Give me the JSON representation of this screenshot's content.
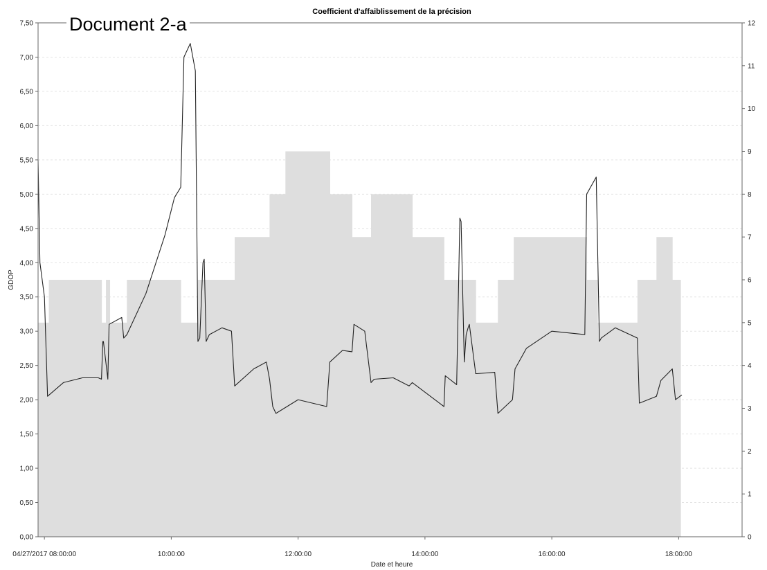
{
  "document_label": "Document 2-a",
  "chart_data": {
    "type": "line",
    "title": "Coefficient d'affaiblissement de la précision",
    "xlabel": "Date et heure",
    "ylabel": "GDOP",
    "y2label": "",
    "xlim": [
      7.9,
      19.0
    ],
    "ylim": [
      0,
      7.5
    ],
    "y2lim": [
      0,
      12
    ],
    "x_ticks": [
      {
        "value": 8,
        "label": "04/27/2017 08:00:00"
      },
      {
        "value": 10,
        "label": "10:00:00"
      },
      {
        "value": 12,
        "label": "12:00:00"
      },
      {
        "value": 14,
        "label": "14:00:00"
      },
      {
        "value": 16,
        "label": "16:00:00"
      },
      {
        "value": 18,
        "label": "18:00:00"
      }
    ],
    "y_ticks": [
      "0,00",
      "0,50",
      "1,00",
      "1,50",
      "2,00",
      "2,50",
      "3,00",
      "3,50",
      "4,00",
      "4,50",
      "5,00",
      "5,50",
      "6,00",
      "6,50",
      "7,00",
      "7,50"
    ],
    "y2_ticks": [
      "0",
      "1",
      "2",
      "3",
      "4",
      "5",
      "6",
      "7",
      "8",
      "9",
      "10",
      "11",
      "12"
    ],
    "grid": true,
    "series": [
      {
        "axis": "right",
        "kind": "step-area",
        "x": [
          7.9,
          8.07,
          8.9,
          8.97,
          9.03,
          9.3,
          10.15,
          10.42,
          11.0,
          11.55,
          11.8,
          12.5,
          12.85,
          13.15,
          13.8,
          14.3,
          14.8,
          15.15,
          15.4,
          16.55,
          16.72,
          17.35,
          17.65,
          17.9,
          18.03
        ],
        "y": [
          5,
          6,
          5,
          6,
          5,
          6,
          5,
          6,
          7,
          8,
          9,
          8,
          7,
          8,
          7,
          6,
          5,
          6,
          7,
          6,
          5,
          6,
          7,
          6,
          7
        ],
        "color": "#dedede"
      },
      {
        "axis": "left",
        "kind": "line",
        "x": [
          7.9,
          7.93,
          8.0,
          8.05,
          8.3,
          8.6,
          8.85,
          8.9,
          8.92,
          8.93,
          9.0,
          9.02,
          9.22,
          9.25,
          9.3,
          9.6,
          9.9,
          10.05,
          10.15,
          10.2,
          10.3,
          10.38,
          10.42,
          10.45,
          10.5,
          10.52,
          10.55,
          10.6,
          10.8,
          10.95,
          11.0,
          11.3,
          11.5,
          11.55,
          11.6,
          11.65,
          12.0,
          12.45,
          12.5,
          12.7,
          12.85,
          12.88,
          13.05,
          13.15,
          13.2,
          13.5,
          13.75,
          13.8,
          14.3,
          14.32,
          14.5,
          14.55,
          14.57,
          14.62,
          14.65,
          14.68,
          14.7,
          14.8,
          14.82,
          15.1,
          15.15,
          15.38,
          15.42,
          15.6,
          16.0,
          16.52,
          16.55,
          16.7,
          16.75,
          16.78,
          17.0,
          17.35,
          17.38,
          17.65,
          17.72,
          17.9,
          17.95,
          18.05
        ],
        "y": [
          5.5,
          4.0,
          3.5,
          2.05,
          2.25,
          2.32,
          2.32,
          2.3,
          2.85,
          2.85,
          2.3,
          3.1,
          3.2,
          2.9,
          2.95,
          3.55,
          4.4,
          4.95,
          5.1,
          7.0,
          7.2,
          6.8,
          2.85,
          2.9,
          4.0,
          4.05,
          2.85,
          2.95,
          3.05,
          3.0,
          2.2,
          2.45,
          2.55,
          2.3,
          1.9,
          1.8,
          2.0,
          1.9,
          2.55,
          2.72,
          2.7,
          3.1,
          3.0,
          2.25,
          2.3,
          2.32,
          2.2,
          2.25,
          1.9,
          2.35,
          2.22,
          4.65,
          4.6,
          2.55,
          2.95,
          3.05,
          3.1,
          2.38,
          2.38,
          2.4,
          1.8,
          2.0,
          2.45,
          2.75,
          3.0,
          2.95,
          5.0,
          5.25,
          2.85,
          2.9,
          3.05,
          2.9,
          1.95,
          2.05,
          2.28,
          2.45,
          2.0,
          2.07
        ],
        "color": "#222222"
      }
    ]
  }
}
